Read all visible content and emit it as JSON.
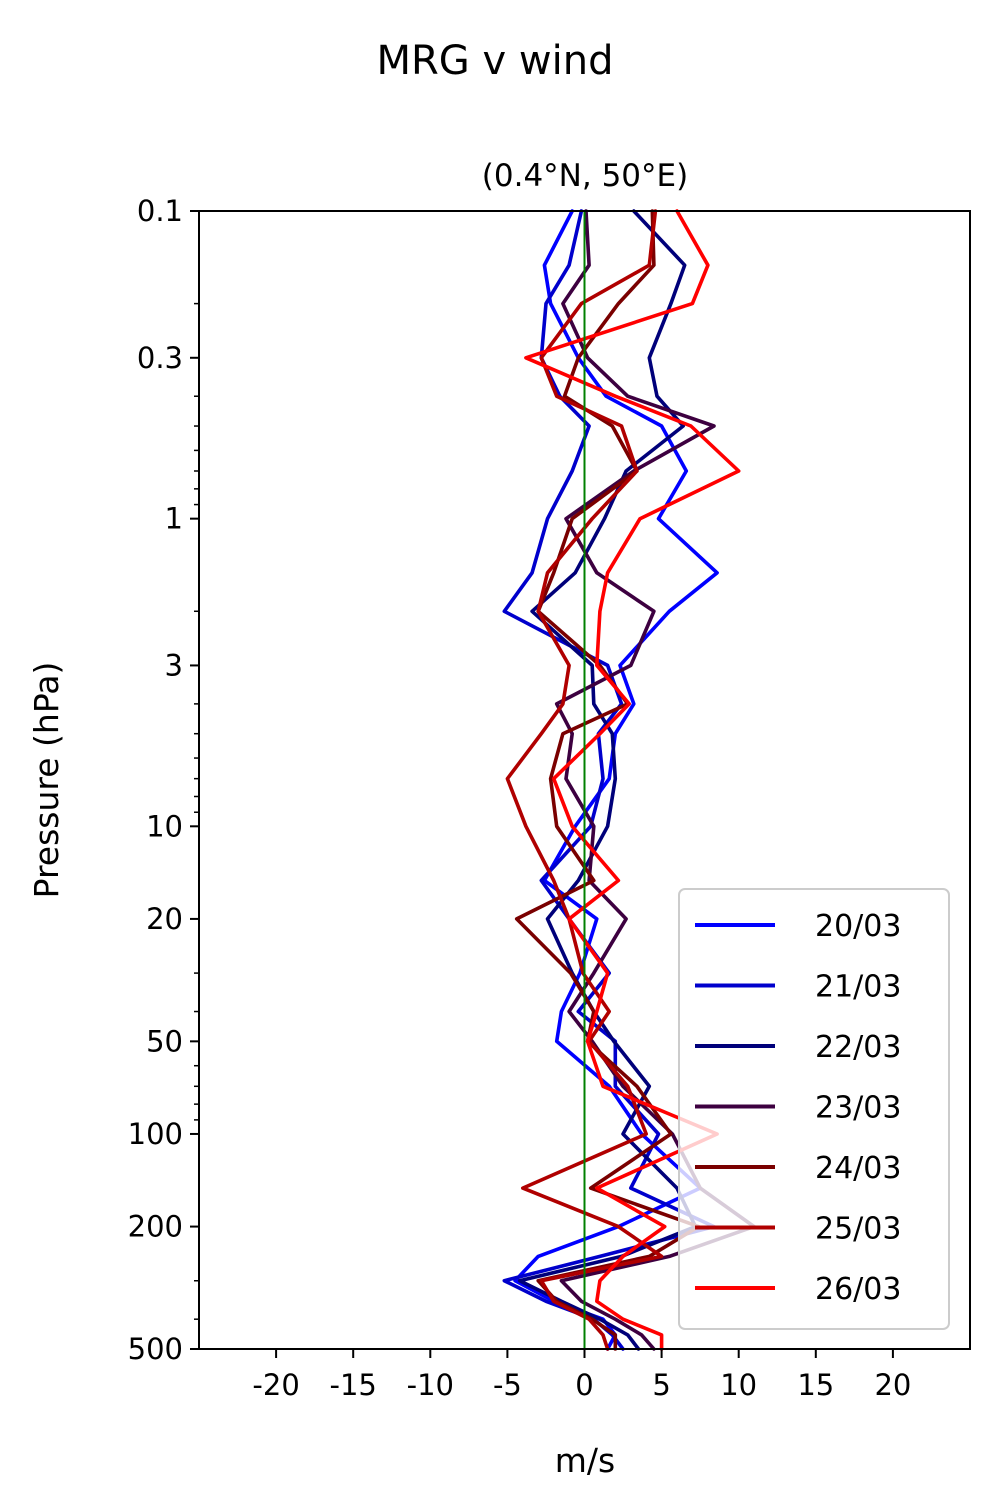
{
  "figure": {
    "suptitle": "MRG v wind"
  },
  "chart_data": {
    "type": "line",
    "title": "(0.4°N, 50°E)",
    "xlabel": "m/s",
    "ylabel": "Pressure (hPa)",
    "xlim": [
      -25,
      25
    ],
    "ylim": [
      500,
      0.1
    ],
    "yscale": "log",
    "grid": false,
    "legend_position": "lower-right",
    "xticks": [
      -20,
      -15,
      -10,
      -5,
      0,
      5,
      10,
      15,
      20
    ],
    "xtick_labels": [
      "-20",
      "-15",
      "-10",
      "-5",
      "0",
      "5",
      "10",
      "15",
      "20"
    ],
    "yticks": [
      0.1,
      0.3,
      1,
      3,
      10,
      20,
      50,
      100,
      200,
      500
    ],
    "ytick_labels": [
      "0.1",
      "0.3",
      "1",
      "3",
      "10",
      "20",
      "50",
      "100",
      "200",
      "500"
    ],
    "zero_line": {
      "x": 0,
      "color": "#008000"
    },
    "pressure": [
      0.1,
      0.15,
      0.2,
      0.3,
      0.4,
      0.5,
      0.7,
      1.0,
      1.5,
      2.0,
      3.0,
      4.0,
      5.0,
      7.0,
      10,
      15,
      20,
      30,
      40,
      50,
      70,
      100,
      150,
      200,
      250,
      300,
      350,
      400,
      450,
      500
    ],
    "series": [
      {
        "name": "20/03",
        "color": "#0000ff",
        "values": [
          -0.8,
          -2.6,
          -2.2,
          -0.4,
          1.4,
          5.0,
          6.6,
          4.8,
          8.6,
          5.5,
          2.3,
          3.2,
          2.0,
          1.6,
          -0.6,
          -2.6,
          0.8,
          -0.3,
          -1.5,
          -1.8,
          1.6,
          3.7,
          7.5,
          2.2,
          -3.0,
          -4.5,
          -2.0,
          1.2,
          2.0,
          1.5
        ]
      },
      {
        "name": "21/03",
        "color": "#0000cc",
        "values": [
          -0.2,
          -1.0,
          -2.5,
          -2.8,
          -1.6,
          0.3,
          -0.8,
          -2.4,
          -3.4,
          -5.2,
          1.5,
          2.4,
          0.9,
          1.2,
          0.4,
          -2.8,
          -1.0,
          1.6,
          -0.4,
          2.0,
          2.0,
          4.8,
          3.0,
          8.4,
          1.0,
          -5.2,
          -2.5,
          0.6,
          1.8,
          2.5
        ]
      },
      {
        "name": "22/03",
        "color": "#00007a",
        "values": [
          3.2,
          6.5,
          5.6,
          4.2,
          4.7,
          6.4,
          2.7,
          1.3,
          -0.6,
          -3.4,
          0.5,
          0.6,
          1.8,
          2.0,
          1.5,
          -0.4,
          -2.4,
          -0.8,
          0.6,
          1.9,
          4.2,
          2.5,
          6.0,
          7.2,
          2.4,
          -4.2,
          -1.5,
          1.0,
          2.8,
          3.5
        ]
      },
      {
        "name": "23/03",
        "color": "#3d0040",
        "values": [
          0.1,
          0.3,
          -1.4,
          0.2,
          2.8,
          8.4,
          3.2,
          -1.2,
          0.8,
          4.5,
          3.0,
          -1.8,
          -0.8,
          -1.2,
          0.6,
          0.3,
          2.7,
          0.6,
          -1.0,
          0.5,
          2.5,
          5.7,
          7.5,
          11.0,
          5.5,
          -1.5,
          -0.2,
          2.0,
          3.7,
          4.5
        ]
      },
      {
        "name": "24/03",
        "color": "#7a0000",
        "values": [
          4.4,
          4.5,
          2.2,
          -0.4,
          -1.3,
          1.8,
          3.4,
          -0.8,
          -2.0,
          -3.0,
          1.0,
          2.8,
          -1.4,
          -2.2,
          -1.8,
          0.6,
          -4.4,
          -0.9,
          0.6,
          0.2,
          3.4,
          5.6,
          0.4,
          7.4,
          4.2,
          -3.0,
          -1.8,
          0.5,
          2.0,
          2.0
        ]
      },
      {
        "name": "25/03",
        "color": "#b00000",
        "values": [
          4.6,
          4.2,
          -0.2,
          -2.8,
          -1.8,
          2.4,
          3.4,
          0.5,
          -2.4,
          -3.0,
          -1.0,
          -1.4,
          -2.8,
          -5.0,
          -3.8,
          -2.0,
          -1.0,
          -0.1,
          1.6,
          0.3,
          2.8,
          4.0,
          -4.0,
          2.2,
          5.0,
          -2.8,
          -2.0,
          0.3,
          1.2,
          1.5
        ]
      },
      {
        "name": "26/03",
        "color": "#ff0000",
        "values": [
          6.0,
          8.0,
          7.0,
          -3.8,
          2.0,
          6.9,
          10.0,
          3.6,
          1.5,
          1.0,
          0.8,
          2.9,
          1.0,
          -2.0,
          -0.8,
          2.2,
          -1.0,
          1.5,
          0.8,
          0.2,
          1.2,
          8.6,
          0.8,
          5.2,
          2.5,
          1.0,
          0.8,
          2.5,
          5.0,
          5.0
        ]
      }
    ]
  }
}
